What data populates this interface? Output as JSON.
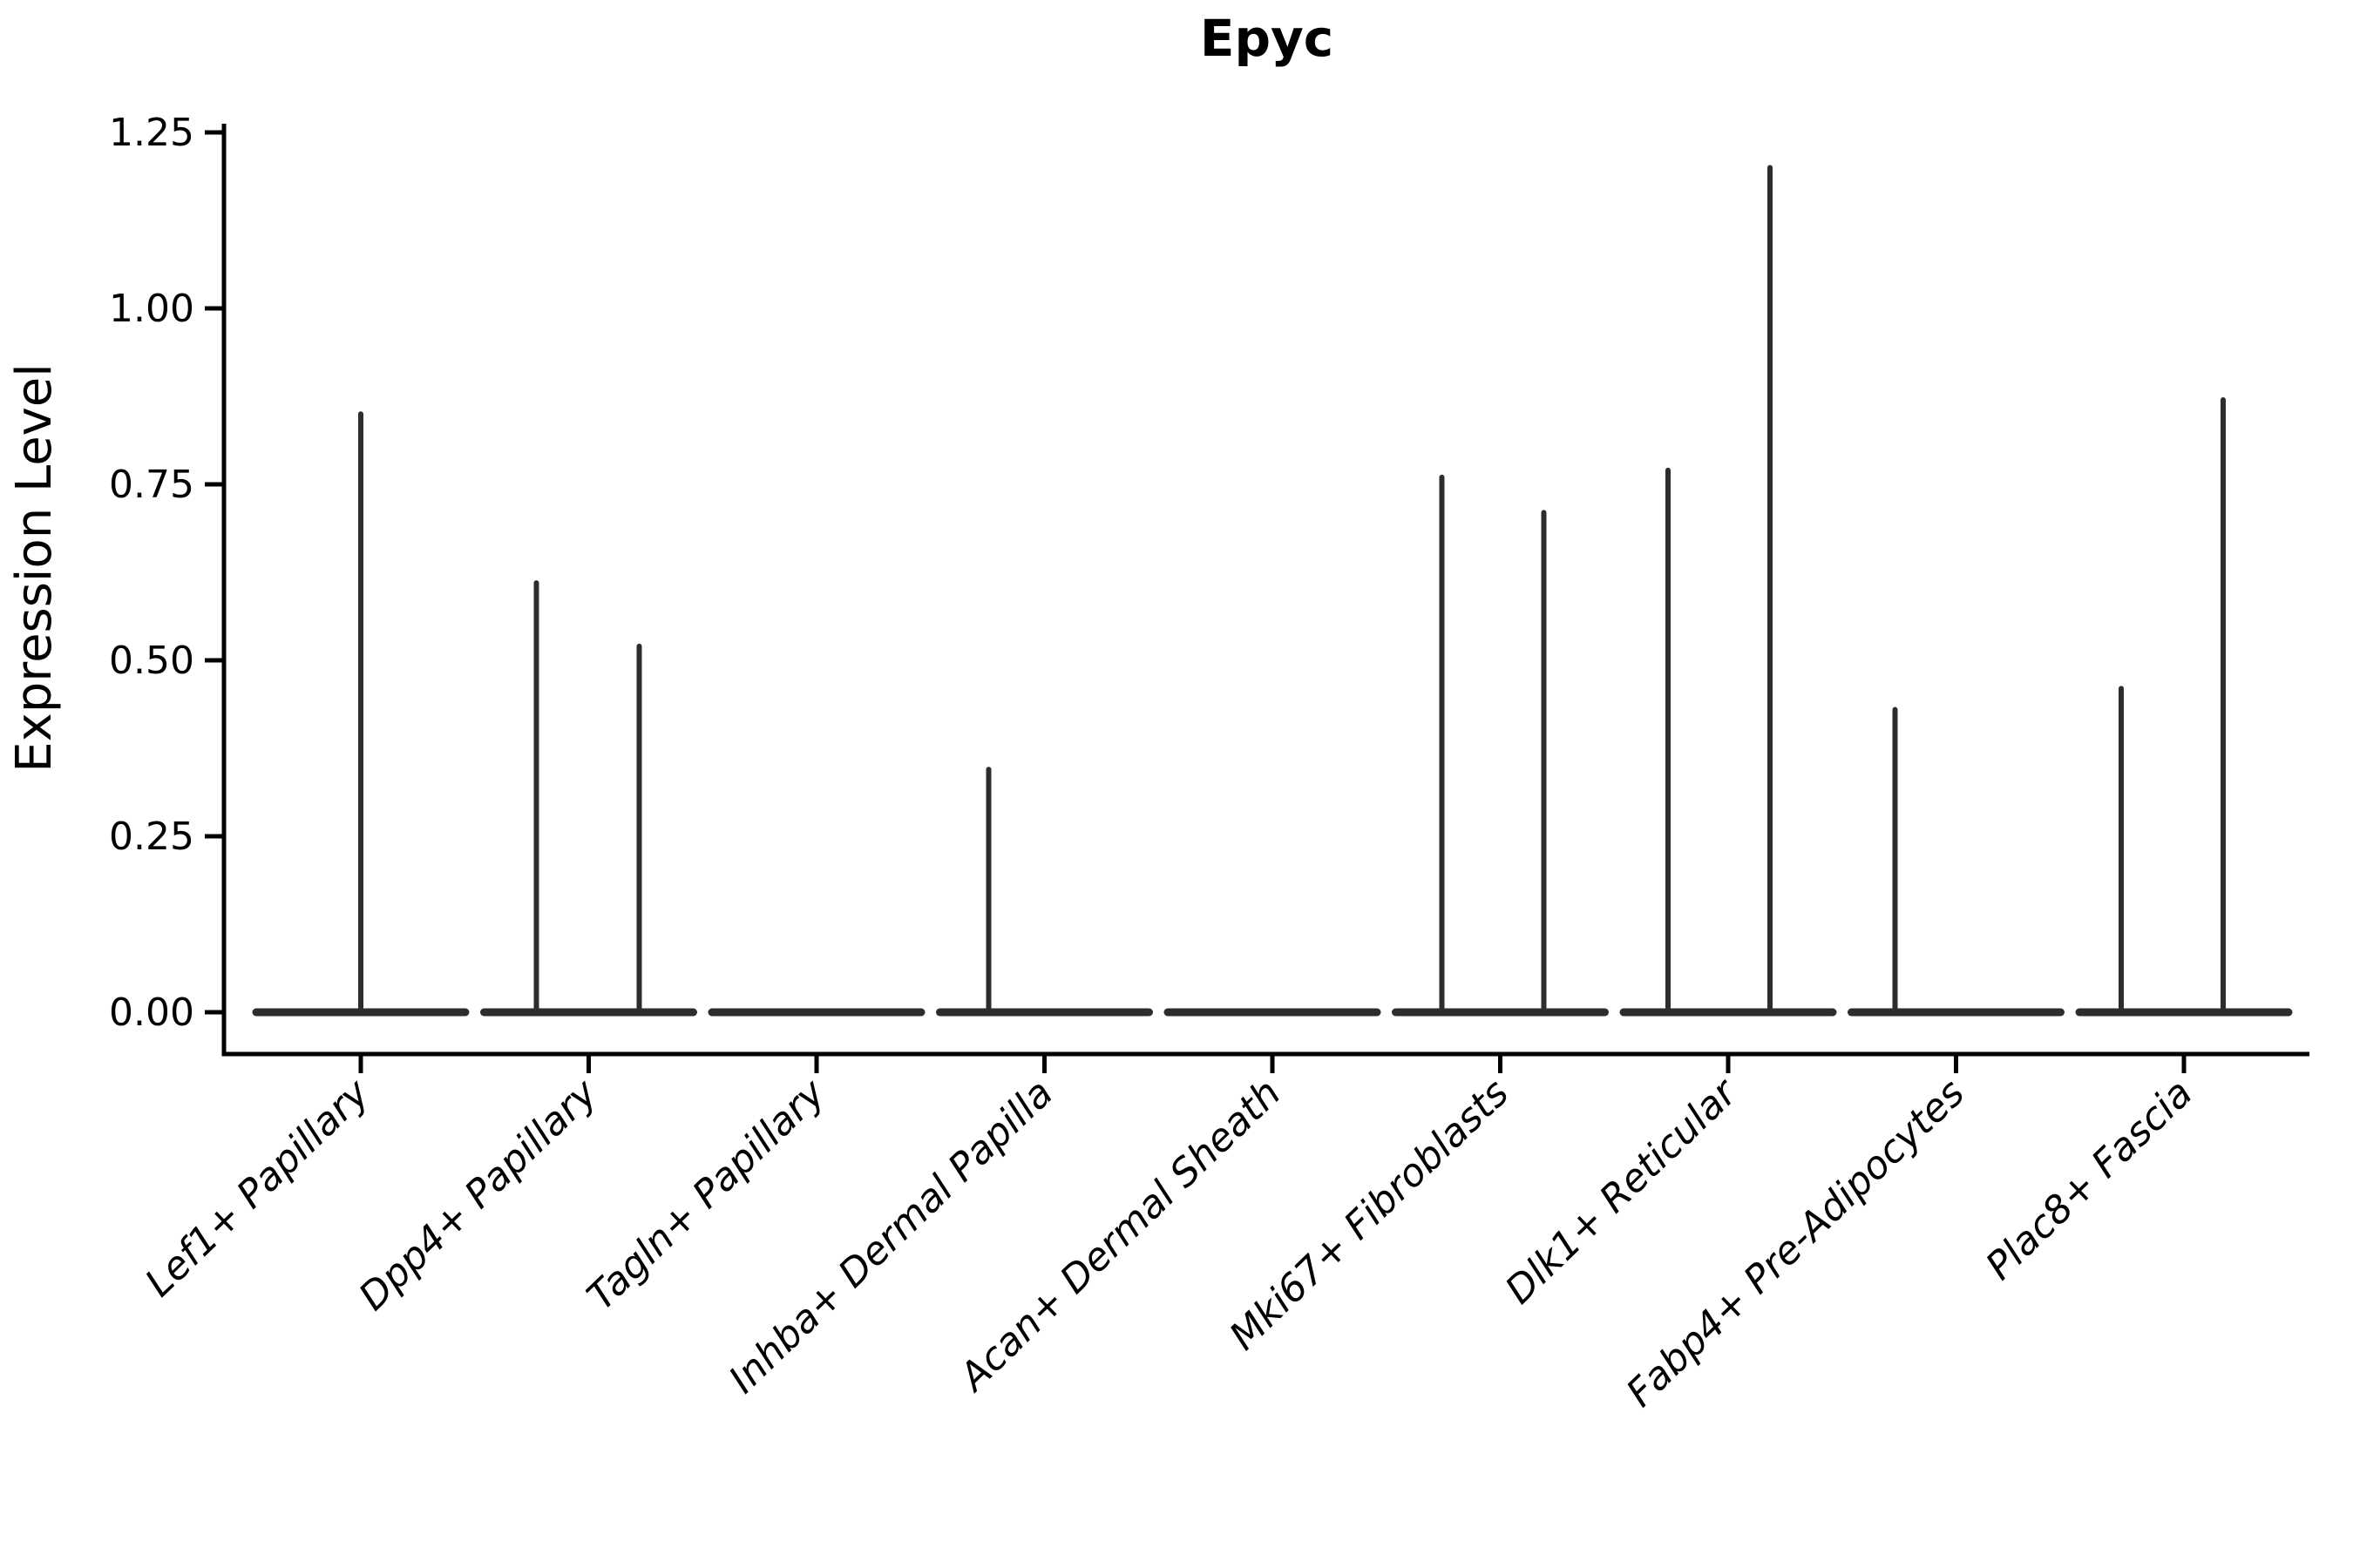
{
  "colors": {
    "ink": "#000000",
    "violin_stroke": "#2d2d2d",
    "background": "#ffffff"
  },
  "chart_data": {
    "type": "violin",
    "title": "Epyc",
    "ylabel": "Expression Level",
    "xlabel": "",
    "ylim": [
      0,
      1.25
    ],
    "yticks": [
      "0.00",
      "0.25",
      "0.50",
      "0.75",
      "1.00",
      "1.25"
    ],
    "grid": false,
    "legend": null,
    "categories": [
      "Lef1+ Papillary",
      "Dpp4+ Papillary",
      "Tagln+ Papillary",
      "Inhba+ Dermal Papilla",
      "Acan+ Dermal Sheath",
      "Mki67+ Fibroblasts",
      "Dlk1+ Reticular",
      "Fabp4+ Pre-Adipocytes",
      "Plac8+ Fascia"
    ],
    "violins": [
      {
        "category": "Lef1+ Papillary",
        "baseline_value": 0.0,
        "spikes": [
          {
            "offset": 0,
            "max": 0.85
          }
        ]
      },
      {
        "category": "Dpp4+ Papillary",
        "baseline_value": 0.0,
        "spikes": [
          {
            "offset": -60,
            "max": 0.61
          },
          {
            "offset": 58,
            "max": 0.52
          }
        ]
      },
      {
        "category": "Tagln+ Papillary",
        "baseline_value": 0.0,
        "spikes": []
      },
      {
        "category": "Inhba+ Dermal Papilla",
        "baseline_value": 0.0,
        "spikes": [
          {
            "offset": -64,
            "max": 0.345
          }
        ]
      },
      {
        "category": "Acan+ Dermal Sheath",
        "baseline_value": 0.0,
        "spikes": []
      },
      {
        "category": "Mki67+ Fibroblasts",
        "baseline_value": 0.0,
        "spikes": [
          {
            "offset": -67,
            "max": 0.76
          },
          {
            "offset": 50,
            "max": 0.71
          }
        ]
      },
      {
        "category": "Dlk1+ Reticular",
        "baseline_value": 0.0,
        "spikes": [
          {
            "offset": -69,
            "max": 0.77
          },
          {
            "offset": 48,
            "max": 1.2
          }
        ]
      },
      {
        "category": "Fabp4+ Pre-Adipocytes",
        "baseline_value": 0.0,
        "spikes": [
          {
            "offset": -70,
            "max": 0.43
          }
        ]
      },
      {
        "category": "Plac8+ Fascia",
        "baseline_value": 0.0,
        "spikes": [
          {
            "offset": -72,
            "max": 0.46
          },
          {
            "offset": 45,
            "max": 0.87
          }
        ]
      }
    ]
  }
}
